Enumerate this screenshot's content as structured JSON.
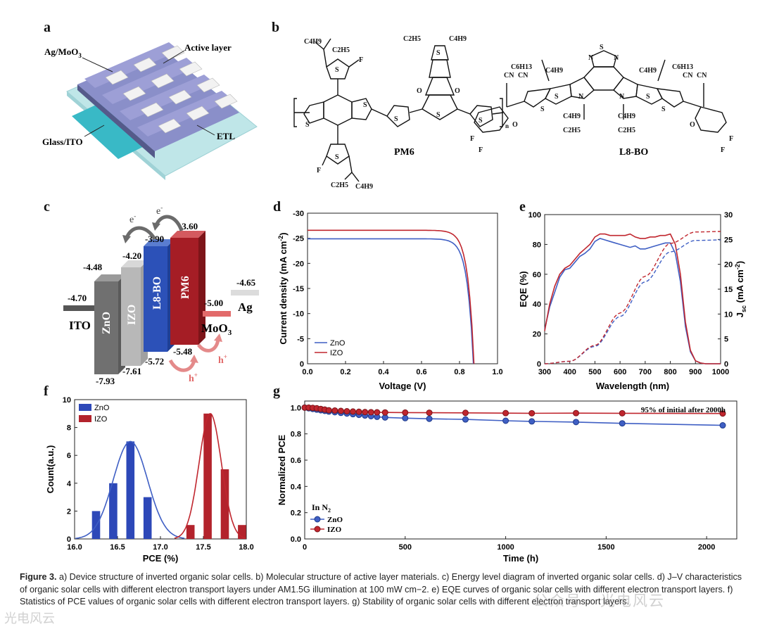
{
  "panels": {
    "a": "a",
    "b": "b",
    "c": "c",
    "d": "d",
    "e": "e",
    "f": "f",
    "g": "g"
  },
  "device": {
    "ag": "Ag/MoO",
    "ag_sub": "3",
    "active": "Active layer",
    "glass": "Glass/ITO",
    "etl": "ETL"
  },
  "molecules": {
    "pm6": "PM6",
    "l8bo": "L8-BO",
    "n": "n",
    "c4h9": "C4H9",
    "c2h5": "C2H5",
    "c6h13": "C6H13",
    "f": "F",
    "s": "S",
    "o": "O",
    "n_atom": "N",
    "cn": "CN"
  },
  "energy": {
    "ito": "ITO",
    "ito_val": "-4.70",
    "zno": "ZnO",
    "zno_top": "-4.48",
    "zno_bot": "-7.93",
    "izo": "IZO",
    "izo_top": "-4.20",
    "izo_bot": "-7.61",
    "l8bo": "L8-BO",
    "l8bo_top": "-3.90",
    "l8bo_bot": "-5.72",
    "pm6": "PM6",
    "pm6_top": "-3.60",
    "pm6_bot": "-5.48",
    "moo3": "MoO",
    "moo3_sub": "3",
    "moo3_val": "-5.00",
    "ag": "Ag",
    "ag_val": "-4.65",
    "electron": "e",
    "hole": "h"
  },
  "colors": {
    "zno": "#2f4fb0",
    "izo": "#b52a30",
    "ito": "#444444",
    "bar_zno": "#2d48b8",
    "bar_izo": "#b3232c"
  },
  "chart_data": [
    {
      "id": "d",
      "type": "line",
      "title": "",
      "xlabel": "Voltage (V)",
      "ylabel": "Current density (mA cm",
      "ylabel_sup": "-2",
      "ylabel_end": ")",
      "xlim": [
        0,
        1.0
      ],
      "ylim": [
        0,
        -30
      ],
      "xticks": [
        "0.0",
        "0.2",
        "0.4",
        "0.6",
        "0.8",
        "1.0"
      ],
      "yticks": [
        "-30",
        "-25",
        "-20",
        "-15",
        "-10",
        "-5",
        "0"
      ],
      "legend": [
        "ZnO",
        "IZO"
      ],
      "series": [
        {
          "name": "ZnO",
          "jsc": -24.9,
          "voc": 0.873
        },
        {
          "name": "IZO",
          "jsc": -26.6,
          "voc": 0.876
        }
      ]
    },
    {
      "id": "e",
      "type": "line",
      "title": "",
      "xlabel": "Wavelength (nm)",
      "ylabel": "EQE (%)",
      "y2label": "J",
      "y2label_sub": "sc",
      "y2label_end": " (mA cm",
      "y2label_sup": "-2",
      "y2label_close": ")",
      "xlim": [
        300,
        1000
      ],
      "ylim": [
        0,
        100
      ],
      "y2lim": [
        0,
        30
      ],
      "xticks": [
        "300",
        "400",
        "500",
        "600",
        "700",
        "800",
        "900",
        "1000"
      ],
      "yticks": [
        "0",
        "20",
        "40",
        "60",
        "80",
        "100"
      ],
      "y2ticks": [
        "0",
        "5",
        "10",
        "15",
        "20",
        "25",
        "30"
      ],
      "series": [
        {
          "name": "ZnO EQE",
          "x": [
            300,
            320,
            340,
            360,
            380,
            400,
            420,
            440,
            460,
            480,
            500,
            520,
            540,
            560,
            580,
            600,
            620,
            640,
            660,
            680,
            700,
            720,
            740,
            760,
            780,
            800,
            820,
            840,
            860,
            880,
            900,
            920,
            940,
            960,
            980,
            1000
          ],
          "y": [
            23,
            38,
            48,
            58,
            63,
            64,
            68,
            72,
            74,
            77,
            82,
            84,
            83,
            82,
            81,
            80,
            79,
            78,
            79,
            77,
            77,
            78,
            79,
            80,
            81,
            81,
            74,
            55,
            25,
            8,
            2,
            0.5,
            0,
            0,
            0,
            0
          ]
        },
        {
          "name": "IZO EQE",
          "x": [
            300,
            320,
            340,
            360,
            380,
            400,
            420,
            440,
            460,
            480,
            500,
            520,
            540,
            560,
            580,
            600,
            620,
            640,
            660,
            680,
            700,
            720,
            740,
            760,
            780,
            800,
            820,
            840,
            860,
            880,
            900,
            920,
            940,
            960,
            980,
            1000
          ],
          "y": [
            22,
            40,
            52,
            60,
            64,
            66,
            70,
            74,
            77,
            80,
            85,
            87,
            87,
            86,
            86,
            86,
            86,
            87,
            85,
            84,
            84,
            85,
            85,
            86,
            86,
            87,
            80,
            60,
            28,
            9,
            2,
            0.5,
            0,
            0,
            0,
            0
          ]
        },
        {
          "name": "ZnO Jsc",
          "x": [
            300,
            400,
            500,
            600,
            700,
            800,
            900,
            1000
          ],
          "y": [
            0,
            0.5,
            3.5,
            9.5,
            16.5,
            22.5,
            24.8,
            24.9
          ]
        },
        {
          "name": "IZO Jsc",
          "x": [
            300,
            400,
            500,
            600,
            700,
            800,
            900,
            1000
          ],
          "y": [
            0,
            0.5,
            3.7,
            10.2,
            17.6,
            24.2,
            26.5,
            26.6
          ]
        }
      ]
    },
    {
      "id": "f",
      "type": "bar",
      "title": "",
      "xlabel": "PCE (%)",
      "ylabel": "Count(a.u.)",
      "xlim": [
        16.0,
        18.0
      ],
      "ylim": [
        0,
        10
      ],
      "xticks": [
        "16.0",
        "16.5",
        "17.0",
        "17.5",
        "18.0"
      ],
      "yticks": [
        "0",
        "2",
        "4",
        "6",
        "8",
        "10"
      ],
      "legend": [
        "ZnO",
        "IZO"
      ],
      "series": [
        {
          "name": "ZnO",
          "x": [
            16.25,
            16.45,
            16.65,
            16.85
          ],
          "values": [
            2,
            4,
            7,
            3
          ]
        },
        {
          "name": "IZO",
          "x": [
            17.35,
            17.55,
            17.75,
            17.95
          ],
          "values": [
            1,
            9,
            5,
            1
          ]
        }
      ]
    },
    {
      "id": "g",
      "type": "line",
      "title": "",
      "xlabel": "Time (h)",
      "ylabel": "Normalized PCE",
      "xlim": [
        0,
        2150
      ],
      "ylim": [
        0,
        1.05
      ],
      "xticks": [
        "0",
        "500",
        "1000",
        "1500",
        "2000"
      ],
      "yticks": [
        "0.0",
        "0.2",
        "0.4",
        "0.6",
        "0.8",
        "1.0"
      ],
      "annotation": "95% of initial after 2000h",
      "legend_title": "In N",
      "legend_title_sub": "2",
      "legend": [
        "ZnO",
        "IZO"
      ],
      "series": [
        {
          "name": "ZnO",
          "x": [
            0,
            20,
            40,
            60,
            80,
            100,
            120,
            150,
            180,
            210,
            240,
            270,
            300,
            330,
            360,
            400,
            500,
            620,
            800,
            1000,
            1130,
            1350,
            1580,
            2080
          ],
          "y": [
            1.0,
            0.995,
            0.99,
            0.985,
            0.98,
            0.975,
            0.97,
            0.965,
            0.96,
            0.955,
            0.95,
            0.945,
            0.94,
            0.935,
            0.93,
            0.925,
            0.92,
            0.915,
            0.91,
            0.9,
            0.895,
            0.89,
            0.88,
            0.865
          ]
        },
        {
          "name": "IZO",
          "x": [
            0,
            20,
            40,
            60,
            80,
            100,
            120,
            150,
            180,
            210,
            240,
            270,
            300,
            330,
            360,
            400,
            500,
            620,
            800,
            1000,
            1130,
            1350,
            1580,
            2080
          ],
          "y": [
            1.0,
            1.0,
            0.998,
            0.995,
            0.99,
            0.985,
            0.98,
            0.978,
            0.975,
            0.972,
            0.97,
            0.968,
            0.966,
            0.965,
            0.964,
            0.963,
            0.962,
            0.961,
            0.96,
            0.958,
            0.957,
            0.958,
            0.957,
            0.955
          ]
        }
      ]
    }
  ],
  "caption": {
    "fig": "Figure 3.",
    "text": "a) Device structure of inverted organic solar cells. b) Molecular structure of active layer materials. c) Energy level diagram of inverted organic solar cells. d) J–V characteristics of organic solar cells with different electron transport layers under AM1.5G illumination at 100 mW cm−2. e) EQE curves of organic solar cells with different electron transport layers. f) Statistics of PCE values of organic solar cells with different electron transport layers. g) Stability of organic solar cells with different electron transport layers."
  },
  "watermark": {
    "text": "公众号 · 光电风云",
    "brand": "光电风云"
  }
}
